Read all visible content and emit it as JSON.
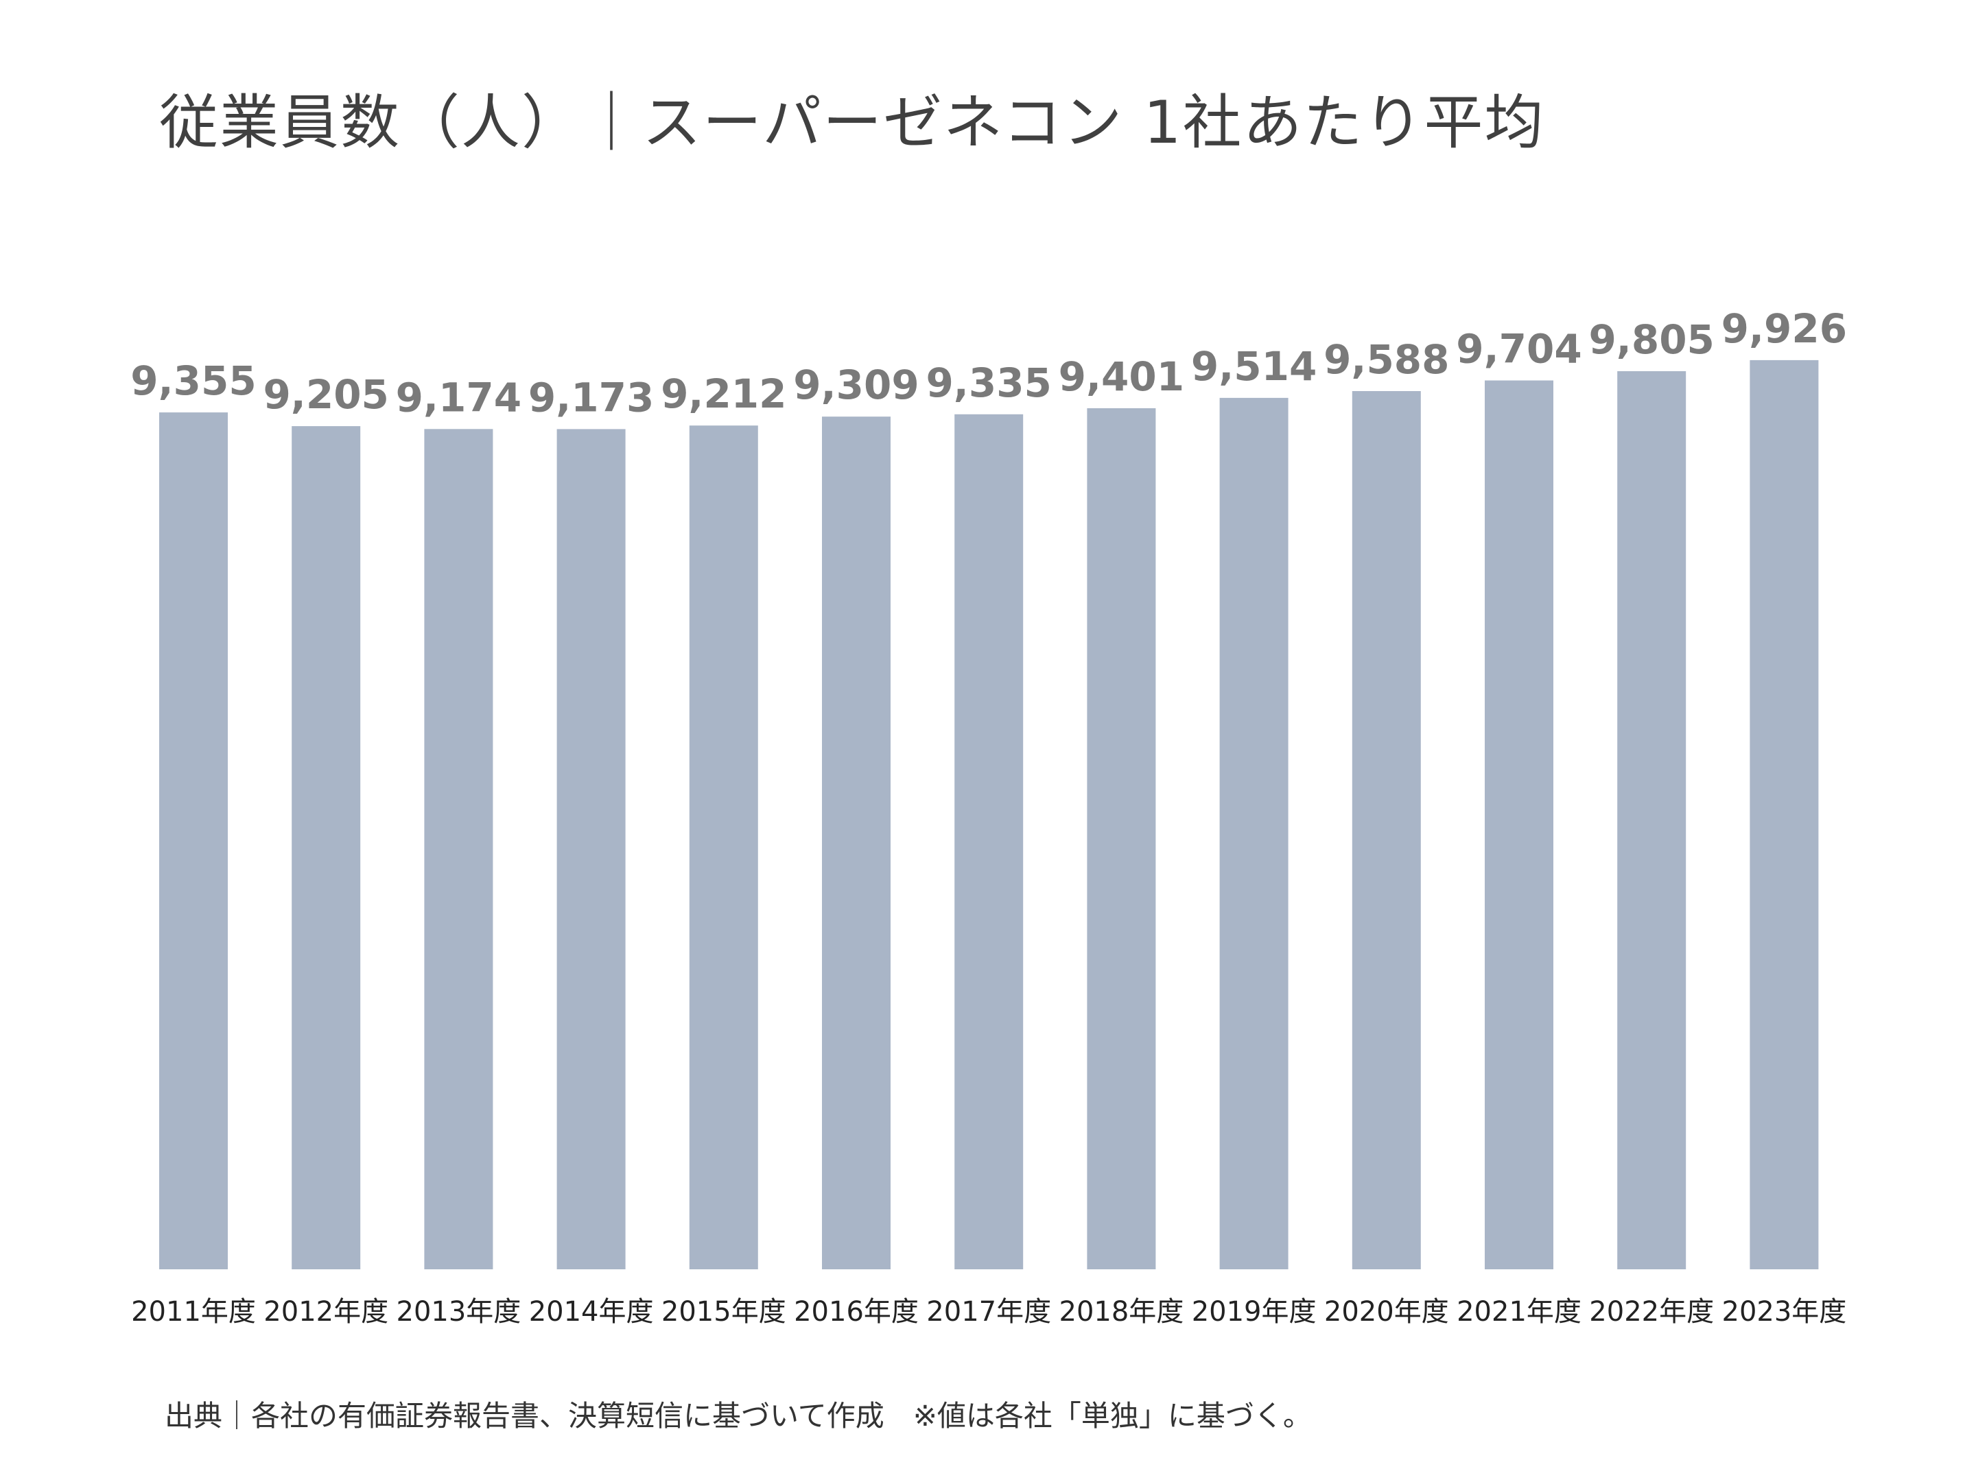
{
  "title": "従業員数（人）｜スーパーゼネコン 1社あたり平均",
  "source_note": "出典｜各社の有価証券報告書、決算短信に基づいて作成　※値は各社「単独」に基づく。",
  "colors": {
    "bar": "#a9b5c7",
    "value_label": "#7a7a7a",
    "title": "#404040"
  },
  "chart_data": {
    "type": "bar",
    "title": "従業員数（人）｜スーパーゼネコン 1社あたり平均",
    "categories": [
      "2011年度",
      "2012年度",
      "2013年度",
      "2014年度",
      "2015年度",
      "2016年度",
      "2017年度",
      "2018年度",
      "2019年度",
      "2020年度",
      "2021年度",
      "2022年度",
      "2023年度"
    ],
    "values": [
      9355,
      9205,
      9174,
      9173,
      9212,
      9309,
      9335,
      9401,
      9514,
      9588,
      9704,
      9805,
      9926
    ],
    "value_labels": [
      "9,355",
      "9,205",
      "9,174",
      "9,173",
      "9,212",
      "9,309",
      "9,335",
      "9,401",
      "9,514",
      "9,588",
      "9,704",
      "9,805",
      "9,926"
    ],
    "ylim": [
      0,
      10000
    ],
    "grid": false,
    "legend": "none"
  }
}
